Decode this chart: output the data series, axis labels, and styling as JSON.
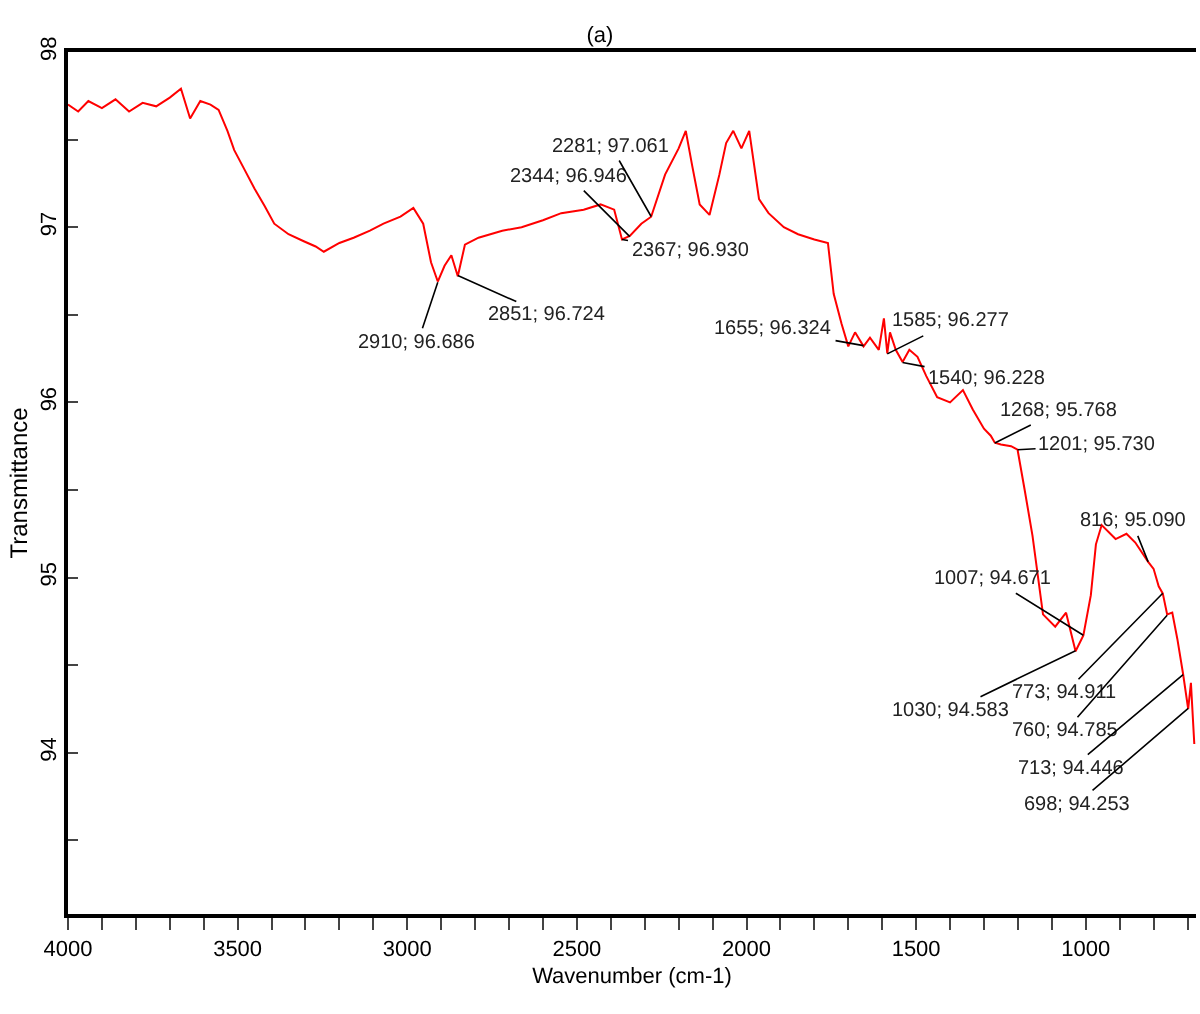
{
  "chart_data": {
    "type": "line",
    "title": "(a)",
    "xlabel": "Wavenumber (cm-1)",
    "ylabel": "Transmittance",
    "xlim": [
      4000,
      675
    ],
    "ylim": [
      93.08,
      98
    ],
    "xticks": [
      4000,
      {
        "value": 3900,
        "label": null
      },
      {
        "value": 3800,
        "label": null
      },
      {
        "value": 3700,
        "label": null
      },
      {
        "value": 3600,
        "label": null
      },
      3500,
      {
        "value": 3400,
        "label": null
      },
      {
        "value": 3300,
        "label": null
      },
      {
        "value": 3200,
        "label": null
      },
      {
        "value": 3100,
        "label": null
      },
      3000,
      {
        "value": 2900,
        "label": null
      },
      {
        "value": 2800,
        "label": null
      },
      {
        "value": 2700,
        "label": null
      },
      {
        "value": 2600,
        "label": null
      },
      2500,
      {
        "value": 2400,
        "label": null
      },
      {
        "value": 2300,
        "label": null
      },
      {
        "value": 2200,
        "label": null
      },
      {
        "value": 2100,
        "label": null
      },
      2000,
      {
        "value": 1900,
        "label": null
      },
      {
        "value": 1800,
        "label": null
      },
      {
        "value": 1700,
        "label": null
      },
      {
        "value": 1600,
        "label": null
      },
      1500,
      {
        "value": 1400,
        "label": null
      },
      {
        "value": 1300,
        "label": null
      },
      {
        "value": 1200,
        "label": null
      },
      {
        "value": 1100,
        "label": null
      },
      1000,
      {
        "value": 900,
        "label": null
      },
      {
        "value": 800,
        "label": null
      },
      {
        "value": 700,
        "label": null
      }
    ],
    "yticks": [
      {
        "value": 93.5,
        "label": null
      },
      94,
      {
        "value": 94.5,
        "label": null
      },
      95,
      {
        "value": 95.5,
        "label": null
      },
      96,
      {
        "value": 96.5,
        "label": null
      },
      97,
      {
        "value": 97.5,
        "label": null
      },
      98
    ],
    "legend": false,
    "marker": "none",
    "line_style": "solid",
    "series": [
      {
        "color": "#ff0000",
        "x": [
          4000,
          3970,
          3940,
          3900,
          3860,
          3820,
          3780,
          3740,
          3700,
          3667,
          3640,
          3610,
          3580,
          3556,
          3530,
          3510,
          3480,
          3450,
          3420,
          3392,
          3350,
          3305,
          3270,
          3246,
          3200,
          3158,
          3110,
          3070,
          3020,
          2982,
          2953,
          2930,
          2910,
          2890,
          2870,
          2851,
          2830,
          2790,
          2720,
          2663,
          2600,
          2546,
          2480,
          2430,
          2390,
          2367,
          2344,
          2310,
          2281,
          2240,
          2200,
          2179,
          2160,
          2138,
          2109,
          2080,
          2060,
          2039,
          2015,
          1992,
          1963,
          1935,
          1890,
          1848,
          1800,
          1760,
          1743,
          1720,
          1700,
          1680,
          1655,
          1636,
          1610,
          1595,
          1585,
          1577,
          1560,
          1540,
          1520,
          1496,
          1470,
          1438,
          1400,
          1362,
          1333,
          1300,
          1280,
          1268,
          1250,
          1220,
          1201,
          1180,
          1157,
          1126,
          1090,
          1058,
          1030,
          1007,
          985,
          970,
          953,
          912,
          880,
          854,
          816,
          800,
          785,
          773,
          760,
          745,
          730,
          713,
          698,
          690,
          680
        ],
        "values": [
          97.7,
          97.66,
          97.72,
          97.68,
          97.73,
          97.66,
          97.71,
          97.69,
          97.74,
          97.79,
          97.62,
          97.72,
          97.7,
          97.67,
          97.55,
          97.44,
          97.33,
          97.22,
          97.12,
          97.02,
          96.96,
          96.92,
          96.89,
          96.86,
          96.91,
          96.94,
          96.98,
          97.02,
          97.06,
          97.11,
          97.02,
          96.8,
          96.69,
          96.78,
          96.84,
          96.72,
          96.9,
          96.94,
          96.98,
          97.0,
          97.04,
          97.08,
          97.1,
          97.13,
          97.1,
          96.93,
          96.95,
          97.02,
          97.06,
          97.3,
          97.45,
          97.55,
          97.35,
          97.13,
          97.07,
          97.3,
          97.48,
          97.55,
          97.45,
          97.55,
          97.16,
          97.08,
          97.0,
          96.96,
          96.93,
          96.91,
          96.62,
          96.45,
          96.32,
          96.4,
          96.32,
          96.37,
          96.3,
          96.48,
          96.28,
          96.4,
          96.3,
          96.23,
          96.3,
          96.26,
          96.15,
          96.03,
          96.0,
          96.07,
          95.96,
          95.85,
          95.81,
          95.77,
          95.76,
          95.75,
          95.73,
          95.5,
          95.24,
          94.79,
          94.72,
          94.8,
          94.58,
          94.67,
          94.9,
          95.19,
          95.3,
          95.22,
          95.25,
          95.2,
          95.09,
          95.05,
          94.95,
          94.91,
          94.79,
          94.8,
          94.65,
          94.45,
          94.25,
          94.4,
          94.05
        ]
      }
    ],
    "annotations": [
      {
        "text": "2910; 96.686",
        "x": 2910,
        "y": 96.686
      },
      {
        "text": "2851; 96.724",
        "x": 2851,
        "y": 96.724
      },
      {
        "text": "2344; 96.946",
        "x": 2344,
        "y": 96.946
      },
      {
        "text": "2367; 96.930",
        "x": 2367,
        "y": 96.93
      },
      {
        "text": "2281; 97.061",
        "x": 2281,
        "y": 97.061
      },
      {
        "text": "1655; 96.324",
        "x": 1655,
        "y": 96.324
      },
      {
        "text": "1585; 96.277",
        "x": 1585,
        "y": 96.277
      },
      {
        "text": "1540; 96.228",
        "x": 1540,
        "y": 96.228
      },
      {
        "text": "1268; 95.768",
        "x": 1268,
        "y": 95.768
      },
      {
        "text": "1201; 95.730",
        "x": 1201,
        "y": 95.73
      },
      {
        "text": "1007; 94.671",
        "x": 1007,
        "y": 94.671
      },
      {
        "text": "1030; 94.583",
        "x": 1030,
        "y": 94.583
      },
      {
        "text": "816; 95.090",
        "x": 816,
        "y": 95.09
      },
      {
        "text": "773; 94.911",
        "x": 773,
        "y": 94.911
      },
      {
        "text": "760; 94.785",
        "x": 760,
        "y": 94.785
      },
      {
        "text": "713; 94.446",
        "x": 713,
        "y": 94.446
      },
      {
        "text": "698; 94.253",
        "x": 698,
        "y": 94.253
      }
    ]
  }
}
